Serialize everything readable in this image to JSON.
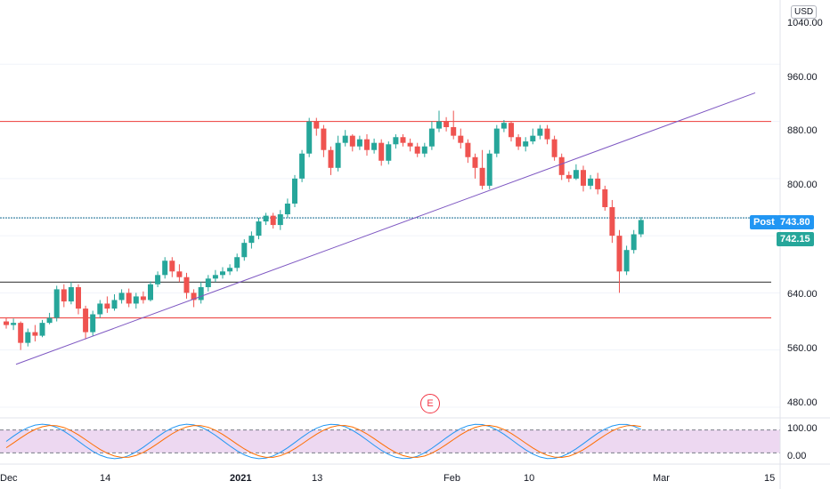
{
  "currency_button": "USD",
  "earnings_marker": "E",
  "price_axis_labels": [
    "1040.00",
    "960.00",
    "880.00",
    "800.00",
    "640.00",
    "560.00",
    "480.00"
  ],
  "osc_axis_labels": [
    "100.00",
    "0.00"
  ],
  "date_labels": [
    "Dec",
    "14",
    "2021",
    "13",
    "Feb",
    "10",
    "Mar",
    "15"
  ],
  "post_label": "Post",
  "post_price": "743.80",
  "last_price": "742.15",
  "colors": {
    "up": "#26a69a",
    "down": "#ef5350",
    "resistance": "#ef5350",
    "trendline": "#7e57c2",
    "support_line": "#555555",
    "post_badge": "#2196f3",
    "last_badge": "#26a69a",
    "osc_band": "#e1bee7"
  },
  "chart_data": {
    "type": "candlestick",
    "ylim": [
      465,
      1050
    ],
    "horizontal_lines": [
      880,
      745,
      655,
      605
    ],
    "trendline": [
      [
        0,
        540
      ],
      [
        130,
        920
      ]
    ],
    "candles": [
      [
        600,
        595,
        605,
        590
      ],
      [
        595,
        598,
        604,
        588
      ],
      [
        598,
        570,
        600,
        560
      ],
      [
        570,
        585,
        590,
        565
      ],
      [
        585,
        580,
        595,
        572
      ],
      [
        580,
        598,
        602,
        578
      ],
      [
        598,
        605,
        612,
        596
      ],
      [
        605,
        645,
        650,
        600
      ],
      [
        645,
        628,
        652,
        620
      ],
      [
        628,
        648,
        655,
        624
      ],
      [
        648,
        618,
        652,
        610
      ],
      [
        618,
        585,
        622,
        575
      ],
      [
        585,
        610,
        615,
        580
      ],
      [
        610,
        625,
        630,
        605
      ],
      [
        625,
        618,
        635,
        612
      ],
      [
        618,
        630,
        638,
        615
      ],
      [
        630,
        640,
        645,
        625
      ],
      [
        640,
        625,
        646,
        620
      ],
      [
        625,
        635,
        640,
        618
      ],
      [
        635,
        630,
        642,
        625
      ],
      [
        630,
        652,
        656,
        628
      ],
      [
        652,
        665,
        670,
        648
      ],
      [
        665,
        685,
        690,
        660
      ],
      [
        685,
        670,
        690,
        662
      ],
      [
        670,
        662,
        680,
        655
      ],
      [
        662,
        640,
        668,
        632
      ],
      [
        640,
        630,
        645,
        620
      ],
      [
        630,
        648,
        655,
        625
      ],
      [
        648,
        660,
        665,
        642
      ],
      [
        660,
        665,
        672,
        655
      ],
      [
        665,
        670,
        676,
        660
      ],
      [
        670,
        675,
        680,
        665
      ],
      [
        675,
        690,
        695,
        670
      ],
      [
        690,
        710,
        715,
        685
      ],
      [
        710,
        720,
        726,
        702
      ],
      [
        720,
        740,
        745,
        715
      ],
      [
        740,
        748,
        752,
        735
      ],
      [
        748,
        735,
        752,
        730
      ],
      [
        735,
        750,
        756,
        728
      ],
      [
        750,
        765,
        772,
        745
      ],
      [
        765,
        800,
        805,
        760
      ],
      [
        800,
        835,
        840,
        795
      ],
      [
        835,
        880,
        885,
        830
      ],
      [
        880,
        870,
        885,
        860
      ],
      [
        870,
        840,
        875,
        830
      ],
      [
        840,
        815,
        845,
        805
      ],
      [
        815,
        850,
        860,
        810
      ],
      [
        850,
        860,
        868,
        845
      ],
      [
        860,
        845,
        862,
        838
      ],
      [
        845,
        855,
        860,
        840
      ],
      [
        855,
        840,
        862,
        832
      ],
      [
        840,
        850,
        856,
        835
      ],
      [
        850,
        825,
        855,
        818
      ],
      [
        825,
        848,
        852,
        820
      ],
      [
        848,
        858,
        862,
        842
      ],
      [
        858,
        850,
        862,
        845
      ],
      [
        850,
        845,
        856,
        838
      ],
      [
        845,
        835,
        850,
        830
      ],
      [
        835,
        845,
        850,
        830
      ],
      [
        845,
        870,
        880,
        840
      ],
      [
        870,
        880,
        895,
        865
      ],
      [
        880,
        872,
        886,
        866
      ],
      [
        872,
        860,
        895,
        855
      ],
      [
        860,
        850,
        870,
        842
      ],
      [
        850,
        830,
        855,
        822
      ],
      [
        830,
        815,
        835,
        800
      ],
      [
        815,
        790,
        840,
        785
      ],
      [
        790,
        835,
        840,
        785
      ],
      [
        835,
        870,
        875,
        830
      ],
      [
        870,
        878,
        882,
        865
      ],
      [
        878,
        858,
        880,
        852
      ],
      [
        858,
        845,
        862,
        840
      ],
      [
        845,
        852,
        858,
        838
      ],
      [
        852,
        860,
        870,
        848
      ],
      [
        860,
        870,
        875,
        855
      ],
      [
        870,
        855,
        875,
        848
      ],
      [
        855,
        830,
        860,
        825
      ],
      [
        830,
        805,
        835,
        798
      ],
      [
        805,
        800,
        810,
        795
      ],
      [
        800,
        812,
        820,
        798
      ],
      [
        812,
        790,
        818,
        782
      ],
      [
        790,
        800,
        805,
        785
      ],
      [
        800,
        785,
        808,
        778
      ],
      [
        785,
        760,
        790,
        755
      ],
      [
        760,
        720,
        770,
        710
      ],
      [
        720,
        670,
        728,
        640
      ],
      [
        670,
        700,
        706,
        665
      ],
      [
        700,
        722,
        728,
        695
      ],
      [
        722,
        742,
        746,
        718
      ]
    ],
    "oscillator_levels": [
      80,
      20
    ]
  }
}
